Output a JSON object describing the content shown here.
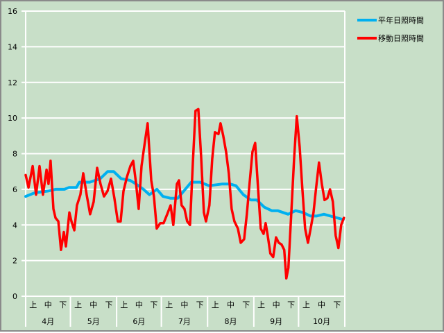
{
  "chart_data": {
    "type": "line",
    "title": "",
    "xlabel": "",
    "ylabel": "",
    "ylim": [
      0,
      16
    ],
    "yticks": [
      "0",
      "2",
      "4",
      "6",
      "8",
      "10",
      "12",
      "14",
      "16"
    ],
    "grid": true,
    "legend_position": "top-right",
    "x_unit": "day since Apr 1",
    "xlim": [
      0,
      214
    ],
    "months": [
      "4月",
      "5月",
      "6月",
      "7月",
      "8月",
      "9月",
      "10月"
    ],
    "month_start_days": [
      0,
      30,
      61,
      91,
      122,
      153,
      183,
      214
    ],
    "decades": [
      "上",
      "中",
      "下"
    ],
    "series": [
      {
        "name": "平年日照時間",
        "color": "#00b0f0",
        "x": [
          0,
          6,
          15,
          20,
          26,
          29,
          34,
          36,
          43,
          50,
          55,
          59,
          64,
          70,
          74,
          79,
          83,
          88,
          92,
          97,
          102,
          106,
          111,
          117,
          123,
          132,
          137,
          141,
          146,
          151,
          155,
          160,
          165,
          169,
          176,
          181,
          186,
          191,
          195,
          200,
          213
        ],
        "values": [
          5.6,
          5.8,
          5.9,
          6.0,
          6.0,
          6.1,
          6.1,
          6.4,
          6.4,
          6.6,
          7.0,
          7.0,
          6.6,
          6.5,
          6.3,
          6.0,
          5.7,
          6.0,
          5.6,
          5.5,
          5.5,
          5.9,
          6.4,
          6.4,
          6.2,
          6.3,
          6.3,
          6.2,
          5.7,
          5.4,
          5.4,
          5.0,
          4.8,
          4.8,
          4.6,
          4.8,
          4.7,
          4.5,
          4.5,
          4.6,
          4.3
        ]
      },
      {
        "name": "移動日照時間",
        "color": "#ff0000",
        "x": [
          0,
          1.9,
          4.7,
          7,
          9.3,
          11.6,
          14,
          15.3,
          16.7,
          18.6,
          20,
          21.9,
          23.7,
          25.6,
          27,
          29.3,
          30.7,
          32.6,
          34.4,
          36.7,
          38.6,
          40.9,
          43.2,
          45.6,
          47.9,
          50.2,
          52.5,
          54.9,
          57.2,
          59.5,
          61.8,
          63.7,
          65.6,
          67.9,
          70.2,
          72.1,
          73.9,
          75.8,
          77.7,
          79.5,
          81.8,
          84.2,
          86,
          87.9,
          90.2,
          92.5,
          94.9,
          97.2,
          99,
          101.4,
          102.8,
          104.6,
          106.5,
          108.3,
          110.2,
          112.1,
          113.9,
          115.8,
          117.6,
          119.5,
          120.9,
          123.2,
          125.1,
          126.9,
          129.3,
          130.7,
          132.5,
          134.4,
          136.2,
          138.1,
          140,
          142.3,
          144.2,
          146.5,
          148.3,
          150.2,
          152.1,
          153.9,
          155.8,
          157.6,
          159.5,
          160.9,
          162.3,
          164.1,
          166,
          167.9,
          169.7,
          171.6,
          173.4,
          174.8,
          176.2,
          178.1,
          180,
          181.8,
          183.7,
          185.5,
          187.4,
          189.3,
          191.1,
          193,
          194.8,
          196.7,
          198.6,
          200.4,
          202.3,
          204.1,
          206,
          207.9,
          209.7,
          211.6,
          213.4
        ],
        "values": [
          6.8,
          6.1,
          7.3,
          5.7,
          7.3,
          5.7,
          7.1,
          6.3,
          7.6,
          4.9,
          4.4,
          4.2,
          2.6,
          3.6,
          2.8,
          4.7,
          4.2,
          3.7,
          5.1,
          5.7,
          6.9,
          5.7,
          4.6,
          5.3,
          7.2,
          6.3,
          5.6,
          5.9,
          6.6,
          5.5,
          4.2,
          4.2,
          5.9,
          6.7,
          7.3,
          7.6,
          6.4,
          4.9,
          7.3,
          8.4,
          9.7,
          6.5,
          5.6,
          3.8,
          4.1,
          4.1,
          4.6,
          5.1,
          4.0,
          6.3,
          6.5,
          5.1,
          4.9,
          4.2,
          4.0,
          7.5,
          10.4,
          10.5,
          7.9,
          4.7,
          4.2,
          5.1,
          7.7,
          9.2,
          9.1,
          9.7,
          9.0,
          8.1,
          6.9,
          4.9,
          4.2,
          3.8,
          3.0,
          3.2,
          4.6,
          6.4,
          8.1,
          8.6,
          6.1,
          3.8,
          3.5,
          4.1,
          3.4,
          2.4,
          2.2,
          3.3,
          3.0,
          2.9,
          2.6,
          1.0,
          1.6,
          4.6,
          7.7,
          10.1,
          8.4,
          6.1,
          3.8,
          3.0,
          3.8,
          4.7,
          6.1,
          7.5,
          6.3,
          5.4,
          5.5,
          6.0,
          5.3,
          3.4,
          2.7,
          4.0,
          4.4
        ]
      }
    ]
  }
}
